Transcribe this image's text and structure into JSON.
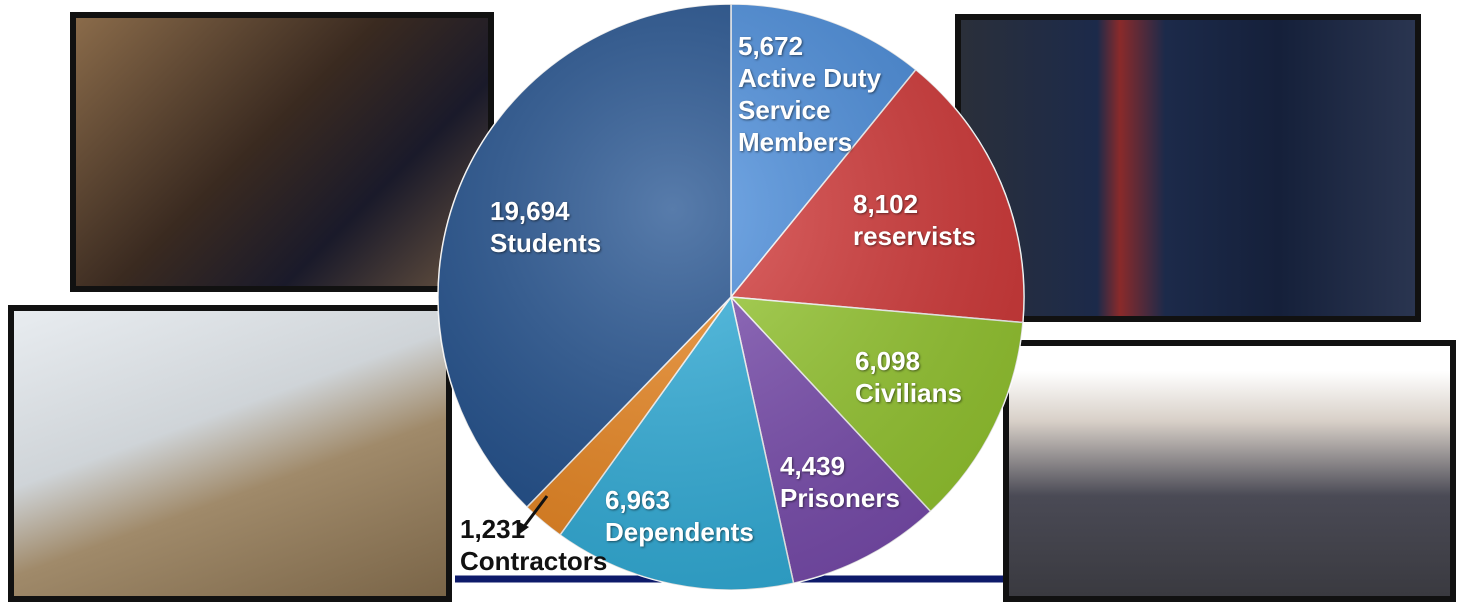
{
  "chart_data": {
    "type": "pie",
    "categories": [
      "Active Duty Service Members",
      "reservists",
      "Civilians",
      "Prisoners",
      "Dependents",
      "Contractors",
      "Students"
    ],
    "values": [
      5672,
      8102,
      6098,
      4439,
      6963,
      1231,
      19694
    ],
    "value_labels": [
      "5,672",
      "8,102",
      "6,098",
      "4,439",
      "6,963",
      "1,231",
      "19,694"
    ],
    "colors": [
      "#4a8fe0",
      "#d83a3a",
      "#9acd32",
      "#7d4fb3",
      "#33b3e0",
      "#f08a22",
      "#20508f"
    ]
  }
}
